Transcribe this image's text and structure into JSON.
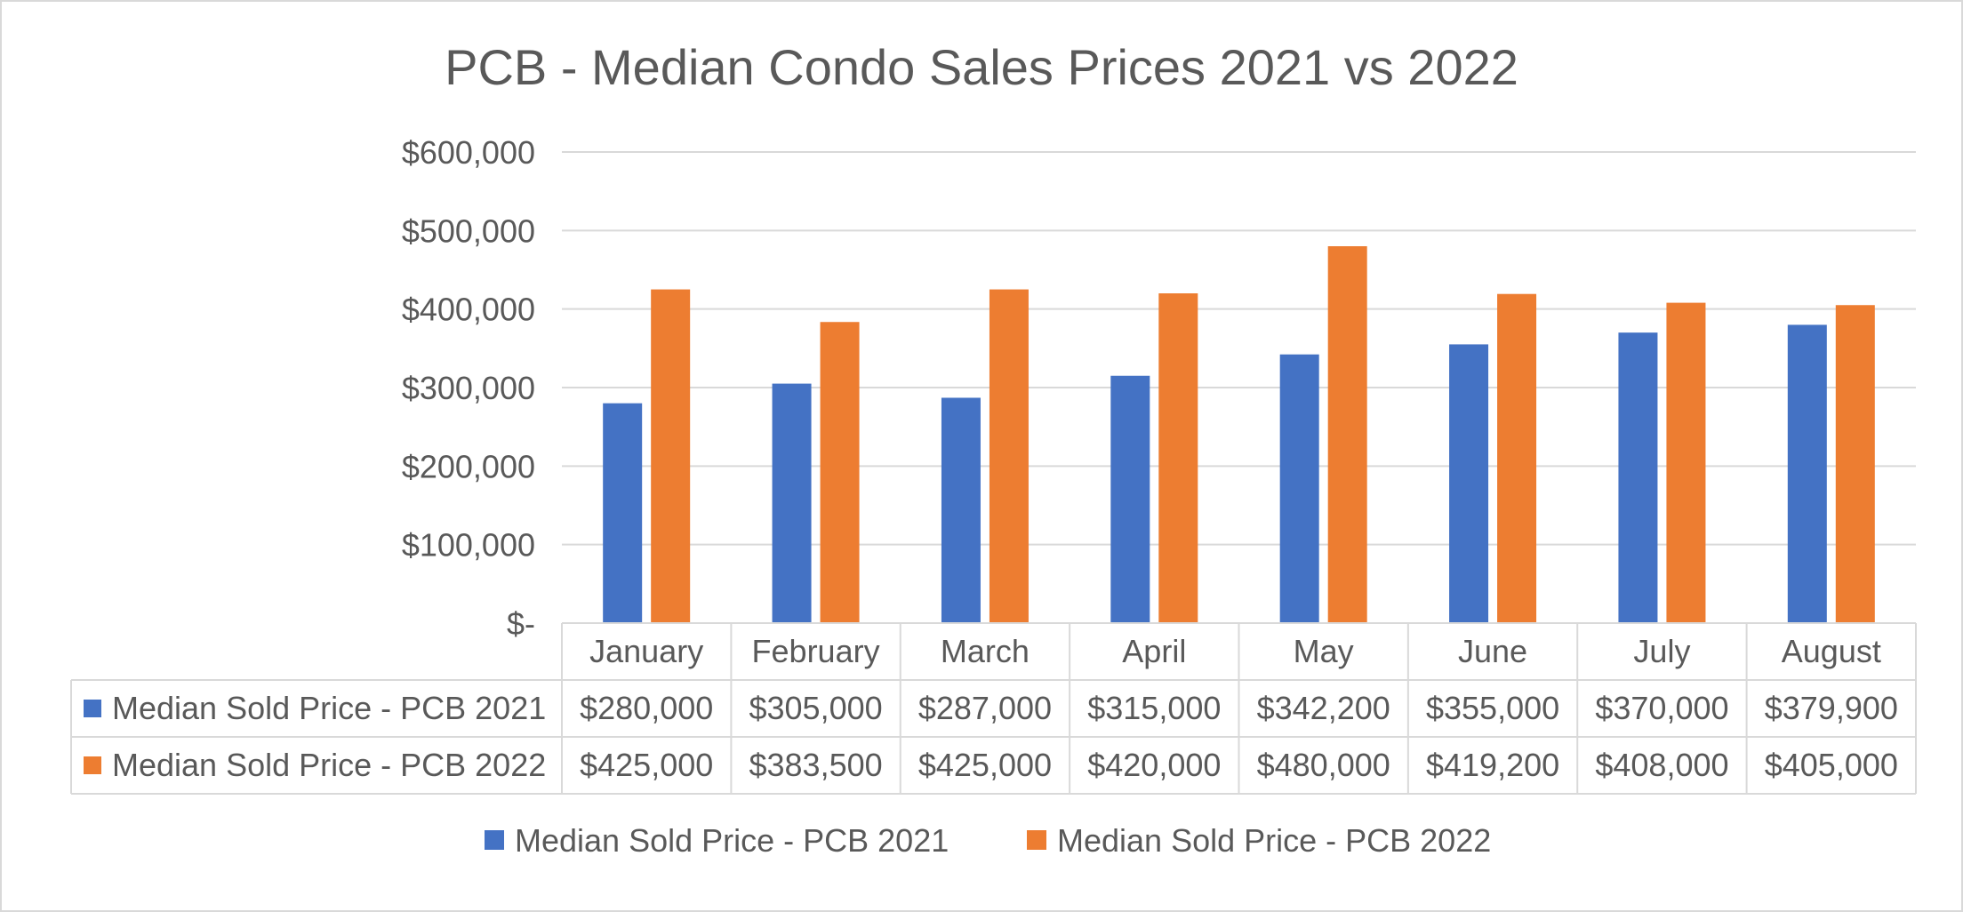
{
  "chart_data": {
    "type": "bar",
    "title": "PCB - Median Condo Sales Prices 2021 vs 2022",
    "xlabel": "",
    "ylabel": "",
    "categories": [
      "January",
      "February",
      "March",
      "April",
      "May",
      "June",
      "July",
      "August"
    ],
    "series": [
      {
        "name": "Median Sold Price - PCB 2021",
        "color": "#4472C4",
        "values": [
          280000,
          305000,
          287000,
          315000,
          342200,
          355000,
          370000,
          379900
        ],
        "table_values": [
          "$280,000",
          "$305,000",
          "$287,000",
          "$315,000",
          "$342,200",
          "$355,000",
          "$370,000",
          "$379,900"
        ]
      },
      {
        "name": "Median Sold Price - PCB 2022",
        "color": "#ED7D31",
        "values": [
          425000,
          383500,
          425000,
          420000,
          480000,
          419200,
          408000,
          405000
        ],
        "table_values": [
          "$425,000",
          "$383,500",
          "$425,000",
          "$420,000",
          "$480,000",
          "$419,200",
          "$408,000",
          "$405,000"
        ]
      }
    ],
    "ylim": [
      0,
      600000
    ],
    "yticks": [
      0,
      100000,
      200000,
      300000,
      400000,
      500000,
      600000
    ],
    "ytick_labels": [
      "$-",
      "$100,000",
      "$200,000",
      "$300,000",
      "$400,000",
      "$500,000",
      "$600,000"
    ],
    "grid": true,
    "data_table": true,
    "legend_position": "bottom",
    "colors": {
      "gridline": "#D9D9D9",
      "text": "#595959",
      "border": "#D9D9D9"
    }
  }
}
